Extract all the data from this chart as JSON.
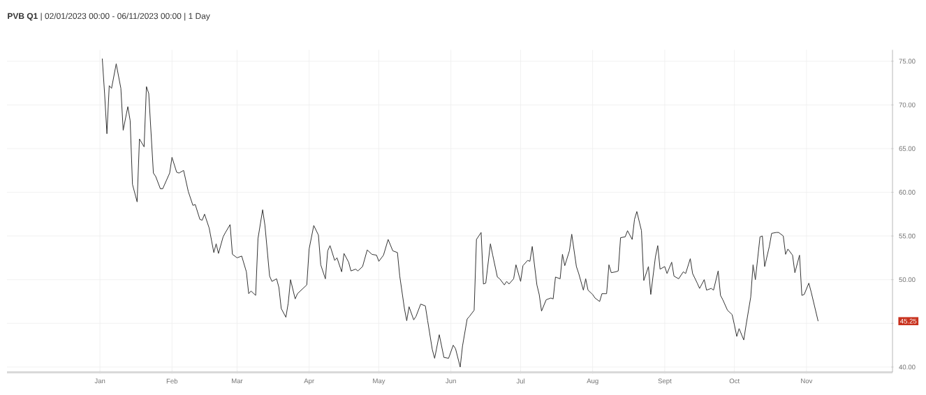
{
  "chart_data": {
    "type": "line",
    "title": "**PVB Q1** | 02/01/2023 00:00 - 06/11/2023 00:00 | 1 Day",
    "x": [
      "2023-01-02",
      "2023-01-03",
      "2023-01-04",
      "2023-01-05",
      "2023-01-06",
      "2023-01-08",
      "2023-01-10",
      "2023-01-11",
      "2023-01-13",
      "2023-01-14",
      "2023-01-15",
      "2023-01-17",
      "2023-01-18",
      "2023-01-20",
      "2023-01-21",
      "2023-01-22",
      "2023-01-24",
      "2023-01-25",
      "2023-01-27",
      "2023-01-28",
      "2023-01-31",
      "2023-02-01",
      "2023-02-03",
      "2023-02-04",
      "2023-02-06",
      "2023-02-08",
      "2023-02-10",
      "2023-02-11",
      "2023-02-13",
      "2023-02-14",
      "2023-02-15",
      "2023-02-17",
      "2023-02-19",
      "2023-02-20",
      "2023-02-21",
      "2023-02-23",
      "2023-02-24",
      "2023-02-26",
      "2023-02-27",
      "2023-03-01",
      "2023-03-03",
      "2023-03-05",
      "2023-03-06",
      "2023-03-07",
      "2023-03-09",
      "2023-03-10",
      "2023-03-12",
      "2023-03-13",
      "2023-03-15",
      "2023-03-16",
      "2023-03-18",
      "2023-03-19",
      "2023-03-20",
      "2023-03-22",
      "2023-03-23",
      "2023-03-24",
      "2023-03-26",
      "2023-03-27",
      "2023-03-29",
      "2023-03-31",
      "2023-04-01",
      "2023-04-03",
      "2023-04-05",
      "2023-04-06",
      "2023-04-08",
      "2023-04-09",
      "2023-04-10",
      "2023-04-12",
      "2023-04-13",
      "2023-04-15",
      "2023-04-16",
      "2023-04-18",
      "2023-04-19",
      "2023-04-21",
      "2023-04-22",
      "2023-04-24",
      "2023-04-26",
      "2023-04-28",
      "2023-04-30",
      "2023-05-01",
      "2023-05-03",
      "2023-05-05",
      "2023-05-07",
      "2023-05-09",
      "2023-05-10",
      "2023-05-12",
      "2023-05-13",
      "2023-05-14",
      "2023-05-16",
      "2023-05-17",
      "2023-05-19",
      "2023-05-21",
      "2023-05-22",
      "2023-05-24",
      "2023-05-25",
      "2023-05-27",
      "2023-05-29",
      "2023-05-31",
      "2023-06-02",
      "2023-06-03",
      "2023-06-05",
      "2023-06-06",
      "2023-06-08",
      "2023-06-09",
      "2023-06-11",
      "2023-06-12",
      "2023-06-14",
      "2023-06-15",
      "2023-06-16",
      "2023-06-18",
      "2023-06-19",
      "2023-06-21",
      "2023-06-22",
      "2023-06-24",
      "2023-06-25",
      "2023-06-26",
      "2023-06-28",
      "2023-06-29",
      "2023-07-01",
      "2023-07-02",
      "2023-07-04",
      "2023-07-05",
      "2023-07-06",
      "2023-07-08",
      "2023-07-09",
      "2023-07-10",
      "2023-07-12",
      "2023-07-14",
      "2023-07-15",
      "2023-07-16",
      "2023-07-18",
      "2023-07-19",
      "2023-07-20",
      "2023-07-22",
      "2023-07-23",
      "2023-07-25",
      "2023-07-26",
      "2023-07-28",
      "2023-07-29",
      "2023-07-30",
      "2023-08-01",
      "2023-08-02",
      "2023-08-04",
      "2023-08-05",
      "2023-08-07",
      "2023-08-08",
      "2023-08-09",
      "2023-08-11",
      "2023-08-12",
      "2023-08-13",
      "2023-08-15",
      "2023-08-16",
      "2023-08-18",
      "2023-08-19",
      "2023-08-20",
      "2023-08-22",
      "2023-08-23",
      "2023-08-25",
      "2023-08-26",
      "2023-08-28",
      "2023-08-29",
      "2023-08-30",
      "2023-09-01",
      "2023-09-02",
      "2023-09-04",
      "2023-09-05",
      "2023-09-07",
      "2023-09-09",
      "2023-09-10",
      "2023-09-12",
      "2023-09-13",
      "2023-09-15",
      "2023-09-16",
      "2023-09-18",
      "2023-09-19",
      "2023-09-21",
      "2023-09-22",
      "2023-09-24",
      "2023-09-25",
      "2023-09-26",
      "2023-09-28",
      "2023-09-30",
      "2023-10-01",
      "2023-10-02",
      "2023-10-03",
      "2023-10-05",
      "2023-10-06",
      "2023-10-08",
      "2023-10-09",
      "2023-10-10",
      "2023-10-12",
      "2023-10-13",
      "2023-10-14",
      "2023-10-16",
      "2023-10-17",
      "2023-10-19",
      "2023-10-20",
      "2023-10-22",
      "2023-10-23",
      "2023-10-24",
      "2023-10-26",
      "2023-10-27",
      "2023-10-29",
      "2023-10-30",
      "2023-10-31",
      "2023-11-02",
      "2023-11-03",
      "2023-11-06"
    ],
    "series": [
      {
        "color": "#333333",
        "values": [
          75.3,
          71.3,
          66.7,
          72.2,
          71.9,
          74.7,
          71.9,
          67.1,
          69.8,
          68.2,
          60.9,
          58.9,
          66.1,
          65.2,
          72.1,
          71.3,
          62.2,
          61.8,
          60.4,
          60.4,
          62.2,
          64.0,
          62.3,
          62.2,
          62.5,
          60.1,
          58.5,
          58.6,
          56.9,
          56.8,
          57.5,
          55.9,
          53.1,
          54.1,
          53.0,
          54.9,
          55.4,
          56.3,
          52.9,
          52.5,
          52.7,
          50.9,
          48.4,
          48.7,
          48.2,
          54.7,
          58.0,
          56.2,
          50.4,
          49.8,
          50.1,
          49.1,
          46.7,
          45.7,
          47.3,
          50.0,
          47.8,
          48.4,
          48.9,
          49.4,
          53.5,
          56.2,
          55.1,
          51.7,
          50.1,
          53.3,
          53.9,
          52.2,
          52.5,
          50.9,
          53.0,
          52.0,
          51.0,
          51.2,
          51.0,
          51.5,
          53.4,
          52.9,
          52.8,
          52.1,
          52.8,
          54.6,
          53.3,
          53.1,
          50.4,
          46.7,
          45.3,
          46.9,
          45.4,
          45.8,
          47.2,
          47.0,
          45.3,
          42.0,
          41.0,
          43.7,
          41.1,
          41.0,
          42.5,
          42.1,
          40.0,
          42.4,
          45.5,
          45.8,
          46.5,
          54.6,
          55.4,
          49.5,
          49.6,
          54.1,
          52.8,
          50.3,
          50.1,
          49.4,
          49.8,
          49.5,
          50.1,
          51.7,
          49.8,
          51.6,
          52.2,
          52.1,
          53.8,
          49.4,
          48.3,
          46.4,
          47.7,
          47.9,
          47.8,
          50.3,
          50.1,
          52.9,
          51.6,
          53.3,
          55.2,
          51.5,
          50.7,
          48.8,
          50.1,
          48.8,
          48.3,
          47.9,
          47.5,
          48.4,
          48.4,
          51.7,
          50.8,
          50.9,
          51.0,
          54.8,
          54.9,
          55.6,
          54.6,
          56.9,
          57.8,
          55.6,
          49.9,
          51.5,
          48.3,
          52.6,
          53.9,
          51.2,
          51.5,
          50.7,
          52.0,
          50.4,
          50.1,
          50.9,
          50.7,
          52.4,
          50.7,
          49.6,
          49.0,
          50.0,
          48.8,
          49.0,
          48.8,
          51.0,
          48.2,
          47.7,
          46.5,
          46.0,
          44.8,
          43.5,
          44.4,
          43.1,
          44.8,
          48.0,
          51.7,
          50.0,
          54.9,
          55.0,
          51.5,
          53.8,
          55.3,
          55.4,
          55.4,
          55.0,
          52.9,
          53.5,
          52.8,
          50.8,
          52.8,
          48.2,
          48.3,
          49.6,
          48.6,
          45.25
        ]
      }
    ],
    "xlim": [
      "2022-11-22",
      "2023-12-08"
    ],
    "xticks": [
      {
        "value": "2023-01-01",
        "label": "Jan"
      },
      {
        "value": "2023-02-01",
        "label": "Feb"
      },
      {
        "value": "2023-03-01",
        "label": "Mar"
      },
      {
        "value": "2023-04-01",
        "label": "Apr"
      },
      {
        "value": "2023-05-01",
        "label": "May"
      },
      {
        "value": "2023-06-01",
        "label": "Jun"
      },
      {
        "value": "2023-07-01",
        "label": "Jul"
      },
      {
        "value": "2023-08-01",
        "label": "Aug"
      },
      {
        "value": "2023-09-01",
        "label": "Sept"
      },
      {
        "value": "2023-10-01",
        "label": "Oct"
      },
      {
        "value": "2023-11-01",
        "label": "Nov"
      }
    ],
    "ylim": [
      39.4,
      76.3
    ],
    "yticks": [
      {
        "value": 40,
        "label": "40.00"
      },
      {
        "value": 45,
        "label": null
      },
      {
        "value": 50,
        "label": "50.00"
      },
      {
        "value": 55,
        "label": "55.00"
      },
      {
        "value": 60,
        "label": "60.00"
      },
      {
        "value": 65,
        "label": "65.00"
      },
      {
        "value": 70,
        "label": "70.00"
      },
      {
        "value": 75,
        "label": "75.00"
      }
    ],
    "grid": true,
    "annotations": [
      "45.25"
    ]
  }
}
